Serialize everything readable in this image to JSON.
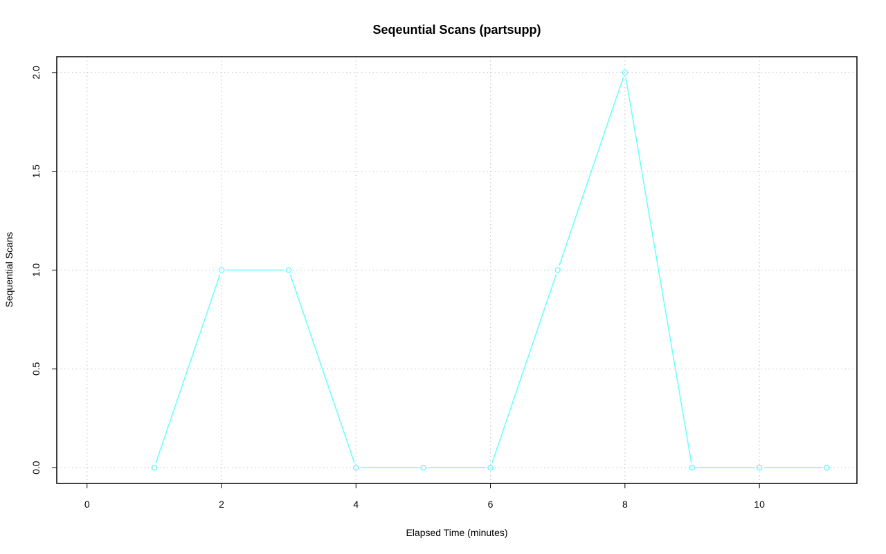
{
  "chart_data": {
    "type": "line",
    "title": "Seqeuntial Scans (partsupp)",
    "xlabel": "Elapsed Time (minutes)",
    "ylabel": "Sequential Scans",
    "xlim": [
      -0.45,
      11.45
    ],
    "ylim": [
      -0.08,
      2.08
    ],
    "x_ticks": [
      0,
      2,
      4,
      6,
      8,
      10
    ],
    "x_tick_labels": [
      "0",
      "2",
      "4",
      "6",
      "8",
      "10"
    ],
    "y_ticks": [
      0.0,
      0.5,
      1.0,
      1.5,
      2.0
    ],
    "y_tick_labels": [
      "0.0",
      "0.5",
      "1.0",
      "1.5",
      "2.0"
    ],
    "grid": true,
    "series": [
      {
        "x": [
          1,
          2,
          3,
          4,
          5,
          6,
          7,
          8,
          9,
          10,
          11
        ],
        "values": [
          0,
          1,
          1,
          0,
          0,
          0,
          1,
          2,
          0,
          0,
          0
        ],
        "color": "#66ffff",
        "marker": "circle"
      }
    ]
  }
}
